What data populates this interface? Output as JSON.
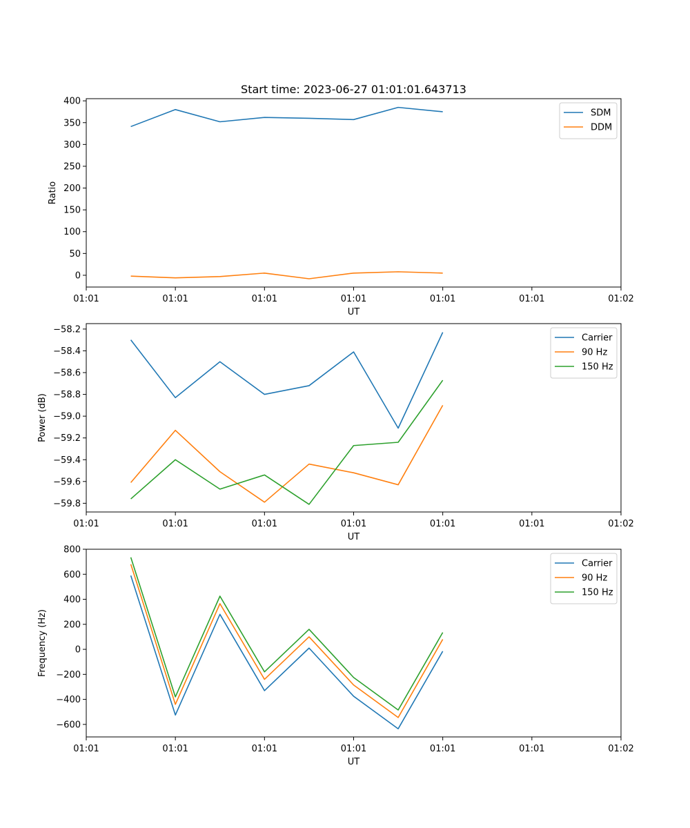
{
  "chart_data": [
    {
      "type": "line",
      "title": "Start time: 2023-06-27 01:01:01.643713",
      "xlabel": "UT",
      "ylabel": "Ratio",
      "xlim": [
        0,
        12
      ],
      "ylim": [
        -27,
        405
      ],
      "x": [
        1,
        2,
        3,
        4,
        5,
        6,
        7,
        8
      ],
      "x_ticks": [
        0,
        2,
        4,
        6,
        8,
        10,
        12
      ],
      "x_tick_labels": [
        "01:01",
        "01:01",
        "01:01",
        "01:01",
        "01:01",
        "01:01",
        "01:02"
      ],
      "y_ticks": [
        0,
        50,
        100,
        150,
        200,
        250,
        300,
        350,
        400
      ],
      "y_tick_labels": [
        "0",
        "50",
        "100",
        "150",
        "200",
        "250",
        "300",
        "350",
        "400"
      ],
      "series": [
        {
          "name": "SDM",
          "color": "#1f77b4",
          "values": [
            341,
            380,
            352,
            362,
            360,
            357,
            385,
            375
          ]
        },
        {
          "name": "DDM",
          "color": "#ff7f0e",
          "values": [
            -2,
            -6,
            -3,
            5,
            -8,
            5,
            8,
            5
          ]
        }
      ],
      "legend": "upper right",
      "grid": false
    },
    {
      "type": "line",
      "title": "",
      "xlabel": "UT",
      "ylabel": "Power (dB)",
      "xlim": [
        0,
        12
      ],
      "ylim": [
        -59.88,
        -58.15
      ],
      "x": [
        1,
        2,
        3,
        4,
        5,
        6,
        7,
        8
      ],
      "x_ticks": [
        0,
        2,
        4,
        6,
        8,
        10,
        12
      ],
      "x_tick_labels": [
        "01:01",
        "01:01",
        "01:01",
        "01:01",
        "01:01",
        "01:01",
        "01:02"
      ],
      "y_ticks": [
        -59.8,
        -59.6,
        -59.4,
        -59.2,
        -59.0,
        -58.8,
        -58.6,
        -58.4,
        -58.2
      ],
      "y_tick_labels": [
        "−59.8",
        "−59.6",
        "−59.4",
        "−59.2",
        "−59.0",
        "−58.8",
        "−58.6",
        "−58.4",
        "−58.2"
      ],
      "series": [
        {
          "name": "Carrier",
          "color": "#1f77b4",
          "values": [
            -58.3,
            -58.83,
            -58.5,
            -58.8,
            -58.72,
            -58.41,
            -59.11,
            -58.23
          ]
        },
        {
          "name": "90 Hz",
          "color": "#ff7f0e",
          "values": [
            -59.61,
            -59.13,
            -59.51,
            -59.79,
            -59.44,
            -59.52,
            -59.63,
            -58.9
          ]
        },
        {
          "name": "150 Hz",
          "color": "#2ca02c",
          "values": [
            -59.76,
            -59.4,
            -59.67,
            -59.54,
            -59.81,
            -59.27,
            -59.24,
            -58.67
          ]
        }
      ],
      "legend": "upper right",
      "grid": false
    },
    {
      "type": "line",
      "title": "",
      "xlabel": "UT",
      "ylabel": "Frequency (Hz)",
      "xlim": [
        0,
        12
      ],
      "ylim": [
        -700,
        800
      ],
      "x": [
        1,
        2,
        3,
        4,
        5,
        6,
        7,
        8
      ],
      "x_ticks": [
        0,
        2,
        4,
        6,
        8,
        10,
        12
      ],
      "x_tick_labels": [
        "01:01",
        "01:01",
        "01:01",
        "01:01",
        "01:01",
        "01:01",
        "01:02"
      ],
      "y_ticks": [
        -600,
        -400,
        -200,
        0,
        200,
        400,
        600,
        800
      ],
      "y_tick_labels": [
        "−600",
        "−400",
        "−200",
        "0",
        "200",
        "400",
        "600",
        "800"
      ],
      "series": [
        {
          "name": "Carrier",
          "color": "#1f77b4",
          "values": [
            590,
            -525,
            280,
            -330,
            10,
            -375,
            -635,
            -15
          ]
        },
        {
          "name": "90 Hz",
          "color": "#ff7f0e",
          "values": [
            680,
            -440,
            365,
            -240,
            100,
            -285,
            -545,
            80
          ]
        },
        {
          "name": "150 Hz",
          "color": "#2ca02c",
          "values": [
            735,
            -380,
            425,
            -180,
            160,
            -225,
            -485,
            135
          ]
        }
      ],
      "legend": "upper right",
      "grid": false
    }
  ]
}
